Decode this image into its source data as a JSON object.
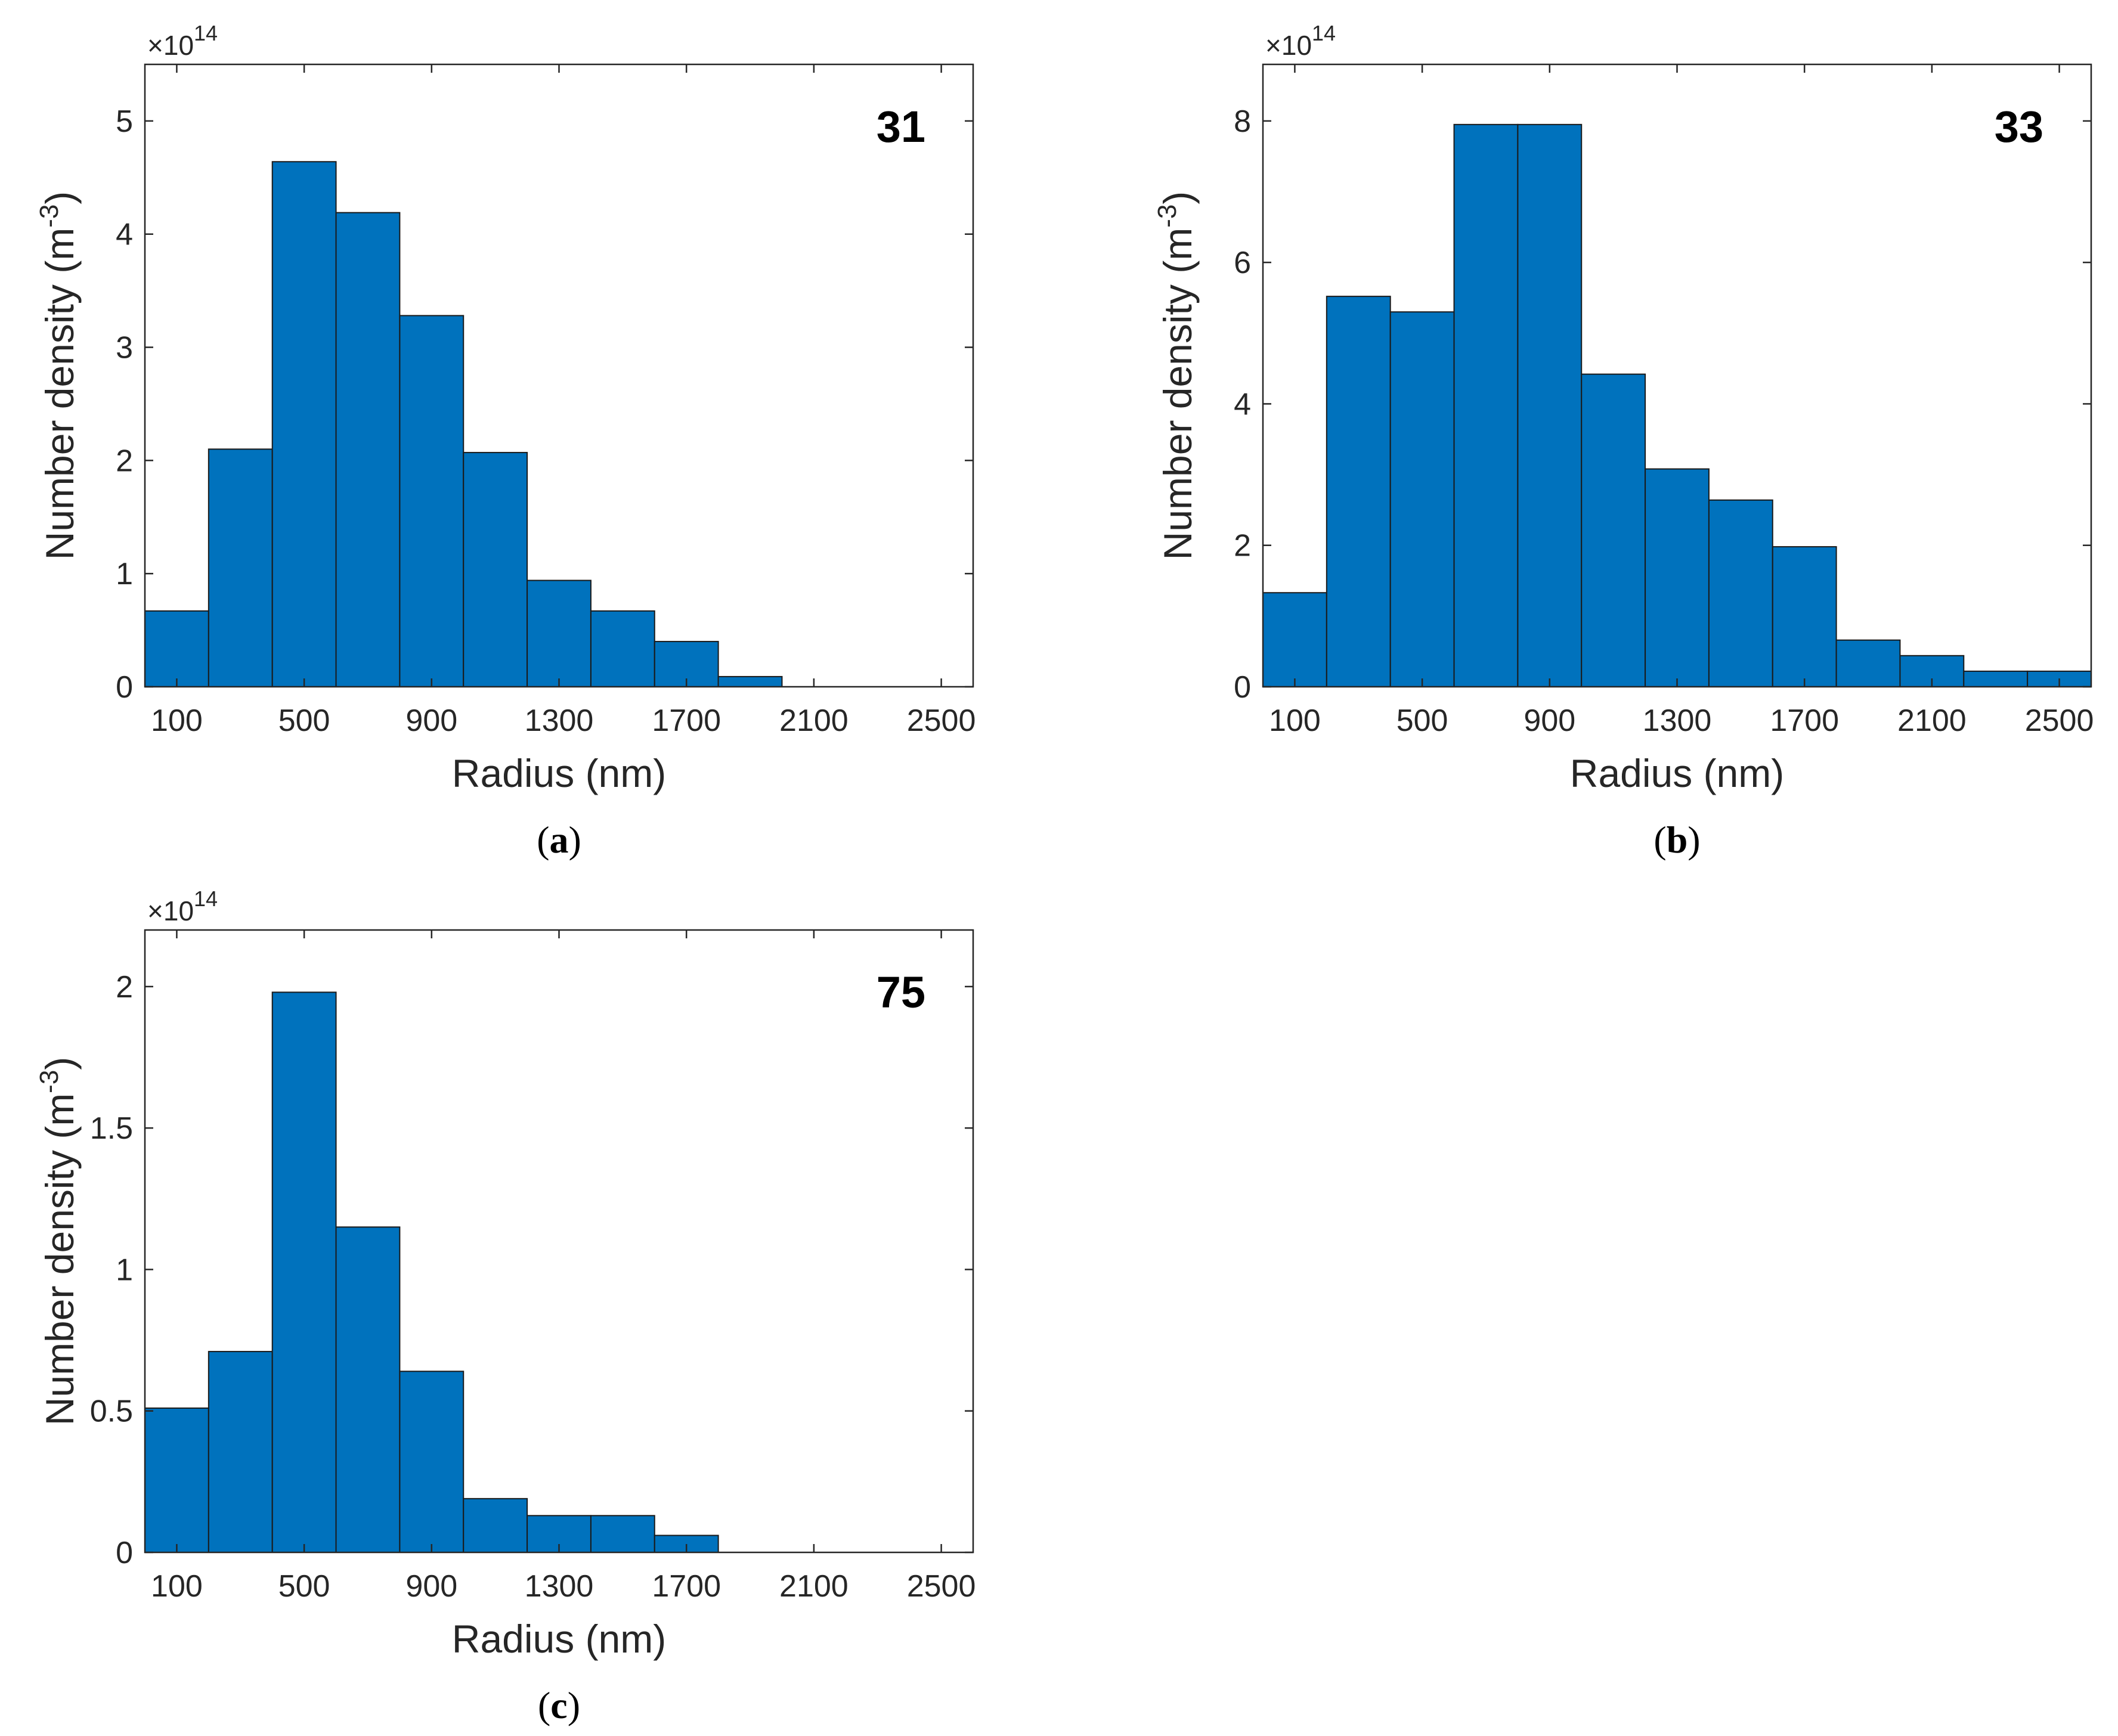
{
  "figure": {
    "colors": {
      "bar_fill": "#0072BD",
      "bar_edge": "#1a1a1a",
      "axis": "#262626"
    }
  },
  "chart_data": [
    {
      "type": "bar",
      "panel_label": "a",
      "annotation": "31",
      "xlabel": "Radius (nm)",
      "ylabel": "Number density (m",
      "ylabel_superscript": "-3",
      "ylabel_close": ")",
      "y_multiplier_prefix": "×10",
      "y_multiplier_exponent": "14",
      "xlim": [
        0,
        2600
      ],
      "xticks": [
        100,
        500,
        900,
        1300,
        1700,
        2100,
        2500
      ],
      "xticklabels": [
        "100",
        "500",
        "900",
        "1300",
        "1700",
        "2100",
        "2500"
      ],
      "ylim": [
        0,
        5.5
      ],
      "yticks": [
        0,
        1,
        2,
        3,
        4,
        5
      ],
      "yticklabels": [
        "0",
        "1",
        "2",
        "3",
        "4",
        "5"
      ],
      "bin_edges": [
        0,
        200,
        400,
        600,
        800,
        1000,
        1200,
        1400,
        1600,
        1800,
        2000
      ],
      "values": [
        0.67,
        2.1,
        4.64,
        4.19,
        3.28,
        2.07,
        0.94,
        0.67,
        0.4,
        0.09
      ]
    },
    {
      "type": "bar",
      "panel_label": "b",
      "annotation": "33",
      "xlabel": "Radius (nm)",
      "ylabel": "Number density (m",
      "ylabel_superscript": "-3",
      "ylabel_close": ")",
      "y_multiplier_prefix": "×10",
      "y_multiplier_exponent": "14",
      "xlim": [
        0,
        2600
      ],
      "xticks": [
        100,
        500,
        900,
        1300,
        1700,
        2100,
        2500
      ],
      "xticklabels": [
        "100",
        "500",
        "900",
        "1300",
        "1700",
        "2100",
        "2500"
      ],
      "ylim": [
        0,
        8.8
      ],
      "yticks": [
        0,
        2,
        4,
        6,
        8
      ],
      "yticklabels": [
        "0",
        "2",
        "4",
        "6",
        "8"
      ],
      "bin_edges": [
        0,
        200,
        400,
        600,
        800,
        1000,
        1200,
        1400,
        1600,
        1800,
        2000,
        2200,
        2400,
        2600
      ],
      "values": [
        1.33,
        5.52,
        5.3,
        7.95,
        7.95,
        4.42,
        3.08,
        2.64,
        1.98,
        0.66,
        0.44,
        0.22,
        0.22
      ]
    },
    {
      "type": "bar",
      "panel_label": "c",
      "annotation": "75",
      "xlabel": "Radius (nm)",
      "ylabel": "Number density (m",
      "ylabel_superscript": "-3",
      "ylabel_close": ")",
      "y_multiplier_prefix": "×10",
      "y_multiplier_exponent": "14",
      "xlim": [
        0,
        2600
      ],
      "xticks": [
        100,
        500,
        900,
        1300,
        1700,
        2100,
        2500
      ],
      "xticklabels": [
        "100",
        "500",
        "900",
        "1300",
        "1700",
        "2100",
        "2500"
      ],
      "ylim": [
        0,
        2.2
      ],
      "yticks": [
        0,
        0.5,
        1,
        1.5,
        2
      ],
      "yticklabels": [
        "0",
        "0.5",
        "1",
        "1.5",
        "2"
      ],
      "bin_edges": [
        0,
        200,
        400,
        600,
        800,
        1000,
        1200,
        1400,
        1600,
        1800
      ],
      "values": [
        0.51,
        0.71,
        1.98,
        1.15,
        0.64,
        0.19,
        0.13,
        0.13,
        0.06
      ]
    }
  ]
}
